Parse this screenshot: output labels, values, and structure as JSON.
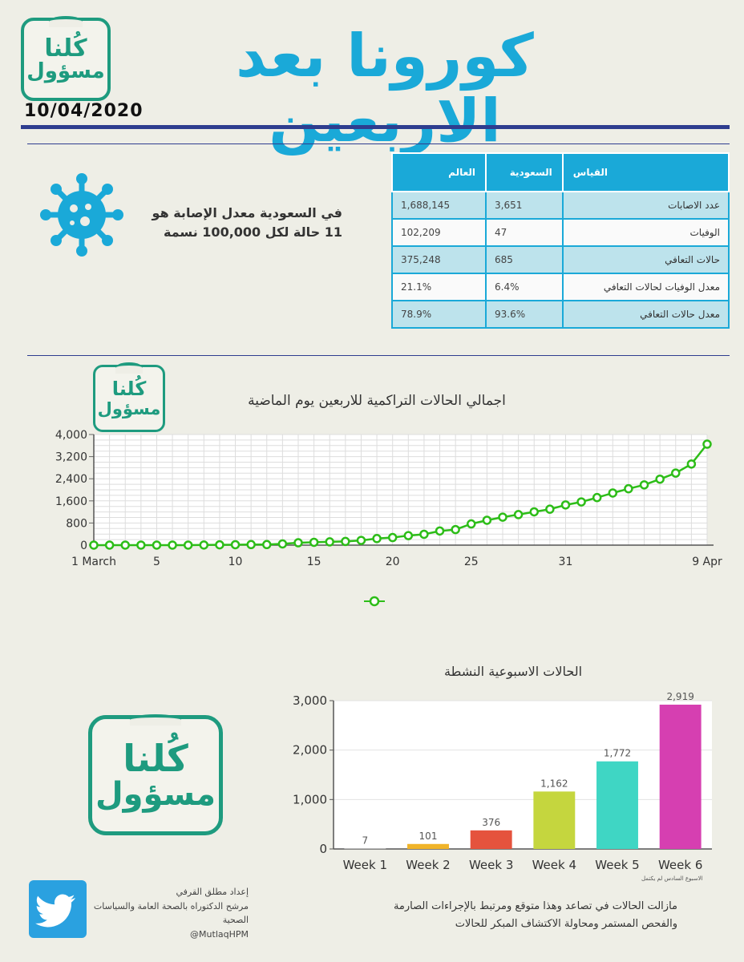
{
  "header": {
    "logo_line1": "كُلنا",
    "logo_line2": "مسؤول",
    "title": "كورونا بعد الاربعين",
    "date": "10/04/2020",
    "accent_color": "#1aa9d8",
    "brand_color": "#1e9b7f"
  },
  "stats": {
    "rate_text": "في السعودية معدل الإصابة هو 11 حالة لكل 100,000 نسمة",
    "icon": "virus-icon",
    "columns": [
      "العالم",
      "السعودية",
      "القياس"
    ],
    "rows": [
      {
        "label": "عدد الاصابات",
        "saudi": "3,651",
        "world": "1,688,145"
      },
      {
        "label": "الوفيات",
        "saudi": "47",
        "world": "102,209"
      },
      {
        "label": "حالات التعافي",
        "saudi": "685",
        "world": "375,248"
      },
      {
        "label": "معدل الوفيات لحالات التعافي",
        "saudi": "6.4%",
        "world": "21.1%"
      },
      {
        "label": "معدل حالات التعافي",
        "saudi": "93.6%",
        "world": "78.9%"
      }
    ]
  },
  "chart_data": [
    {
      "type": "line",
      "title": "اجمالي الحالات التراكمية للاربعين يوم الماضية",
      "x_ticks": [
        "1 March",
        "5",
        "10",
        "15",
        "20",
        "25",
        "31",
        "9 Apr"
      ],
      "x_tick_days": [
        1,
        5,
        10,
        15,
        20,
        25,
        31,
        40
      ],
      "days": [
        1,
        2,
        3,
        4,
        5,
        6,
        7,
        8,
        9,
        10,
        11,
        12,
        13,
        14,
        15,
        16,
        17,
        18,
        19,
        20,
        21,
        22,
        23,
        24,
        25,
        26,
        27,
        28,
        29,
        30,
        31,
        32,
        33,
        34,
        35,
        36,
        37,
        38,
        39,
        40
      ],
      "values": [
        1,
        1,
        1,
        1,
        1,
        1,
        1,
        5,
        11,
        15,
        20,
        21,
        45,
        86,
        103,
        118,
        133,
        171,
        238,
        274,
        344,
        392,
        511,
        562,
        767,
        900,
        1012,
        1104,
        1203,
        1299,
        1453,
        1563,
        1720,
        1885,
        2039,
        2179,
        2385,
        2605,
        2932,
        3651
      ],
      "yticks": [
        0,
        800,
        1600,
        2400,
        3200,
        4000
      ],
      "ylim": [
        0,
        4000
      ],
      "grid": true,
      "color": "#2dbd18"
    },
    {
      "type": "bar",
      "title": "الحالات الاسبوعية النشطة",
      "categories": [
        "Week 1",
        "Week 2",
        "Week 3",
        "Week 4",
        "Week 5",
        "Week 6"
      ],
      "values": [
        7,
        101,
        376,
        1162,
        1772,
        2919
      ],
      "value_labels": [
        "7",
        "101",
        "376",
        "1,162",
        "1,772",
        "2,919"
      ],
      "colors": [
        "#d8d8d8",
        "#f0b429",
        "#e5533d",
        "#c5d63e",
        "#3fd6c4",
        "#d63fb1"
      ],
      "yticks": [
        0,
        1000,
        2000,
        3000
      ],
      "ytick_labels": [
        "0",
        "1,000",
        "2,000",
        "3,000"
      ],
      "ylim": [
        0,
        3000
      ],
      "note": "الاسبوع السادس لم يكتمل"
    }
  ],
  "footer": {
    "note": "مازالت الحالات في تصاعد وهذا متوقع ومرتبط بالإجراءات الصارمة والفحص المستمر ومحاولة الاكتشاف المبكر للحالات",
    "credit_line1": "إعداد مطلق القرفي",
    "credit_line2": "مرشح الدكتوراه بالصحة العامة والسياسات الصحية",
    "credit_handle": "@MutlaqHPM",
    "twitter_icon": "twitter-bird-icon"
  }
}
